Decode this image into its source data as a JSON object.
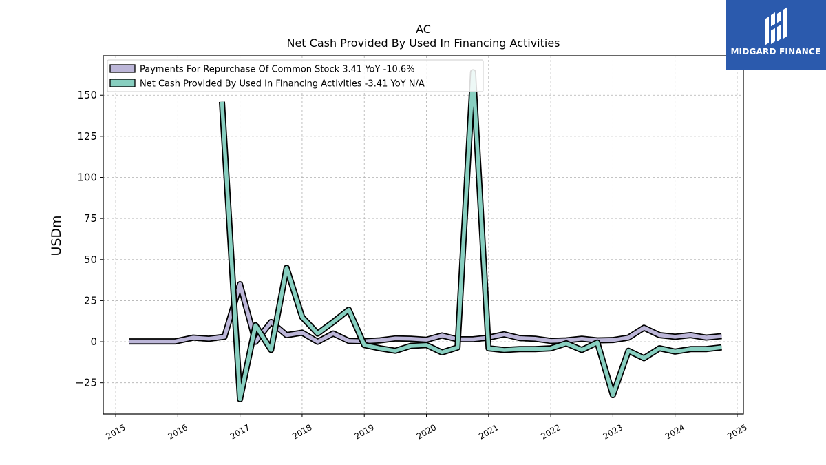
{
  "chart_data": {
    "type": "line",
    "title": "AC",
    "subtitle": "Net Cash Provided By Used In Financing Activities",
    "ylabel": "USDm",
    "xlim": [
      2014.8,
      2025.1
    ],
    "ylim": [
      -44,
      174
    ],
    "yticks": [
      -25,
      0,
      25,
      50,
      75,
      100,
      125,
      150
    ],
    "xticks": [
      2015,
      2016,
      2017,
      2018,
      2019,
      2020,
      2021,
      2022,
      2023,
      2024,
      2025
    ],
    "grid": true,
    "legend_position": "top-left",
    "series": [
      {
        "name": "Payments For Repurchase Of Common Stock",
        "legend_label": "Payments For Repurchase Of Common Stock  3.41 YoY -10.6%",
        "color": "#bcb6d8",
        "points": [
          [
            2015.21,
            0.2
          ],
          [
            2015.46,
            0.2
          ],
          [
            2015.71,
            0.2
          ],
          [
            2015.96,
            0.2
          ],
          [
            2016.25,
            2.5
          ],
          [
            2016.5,
            1.8
          ],
          [
            2016.75,
            3.0
          ],
          [
            2017.0,
            35.0
          ],
          [
            2017.25,
            0.0
          ],
          [
            2017.5,
            12.0
          ],
          [
            2017.75,
            4.0
          ],
          [
            2018.0,
            5.5
          ],
          [
            2018.25,
            0.0
          ],
          [
            2018.5,
            5.0
          ],
          [
            2018.75,
            0.5
          ],
          [
            2019.0,
            0.3
          ],
          [
            2019.25,
            0.8
          ],
          [
            2019.5,
            2.0
          ],
          [
            2019.75,
            1.8
          ],
          [
            2020.0,
            1.2
          ],
          [
            2020.25,
            3.8
          ],
          [
            2020.5,
            1.5
          ],
          [
            2020.75,
            1.5
          ],
          [
            2021.0,
            2.5
          ],
          [
            2021.25,
            4.5
          ],
          [
            2021.5,
            2.2
          ],
          [
            2021.75,
            1.8
          ],
          [
            2022.0,
            0.5
          ],
          [
            2022.25,
            0.8
          ],
          [
            2022.5,
            1.8
          ],
          [
            2022.75,
            0.8
          ],
          [
            2023.0,
            1.0
          ],
          [
            2023.25,
            2.5
          ],
          [
            2023.5,
            8.5
          ],
          [
            2023.75,
            4.0
          ],
          [
            2024.0,
            3.0
          ],
          [
            2024.25,
            4.0
          ],
          [
            2024.5,
            2.5
          ],
          [
            2024.75,
            3.4
          ]
        ]
      },
      {
        "name": "Net Cash Provided By Used In Financing Activities",
        "legend_label": "Net Cash Provided By Used In Financing Activities  -3.41 YoY N/A",
        "color": "#88cfc0",
        "points": [
          [
            2016.71,
            146.0
          ],
          [
            2017.0,
            -35.0
          ],
          [
            2017.25,
            10.0
          ],
          [
            2017.5,
            -5.0
          ],
          [
            2017.75,
            45.0
          ],
          [
            2018.0,
            15.0
          ],
          [
            2018.25,
            5.0
          ],
          [
            2018.5,
            12.0
          ],
          [
            2018.75,
            19.5
          ],
          [
            2019.0,
            -2.0
          ],
          [
            2019.25,
            -4.0
          ],
          [
            2019.5,
            -5.5
          ],
          [
            2019.75,
            -2.5
          ],
          [
            2020.0,
            -2.0
          ],
          [
            2020.25,
            -6.5
          ],
          [
            2020.5,
            -3.5
          ],
          [
            2020.75,
            164.0
          ],
          [
            2021.0,
            -4.0
          ],
          [
            2021.25,
            -5.0
          ],
          [
            2021.5,
            -4.5
          ],
          [
            2021.75,
            -4.5
          ],
          [
            2022.0,
            -4.0
          ],
          [
            2022.25,
            -1.0
          ],
          [
            2022.5,
            -5.0
          ],
          [
            2022.75,
            -0.5
          ],
          [
            2023.0,
            -32.5
          ],
          [
            2023.25,
            -5.5
          ],
          [
            2023.5,
            -10.0
          ],
          [
            2023.75,
            -4.0
          ],
          [
            2024.0,
            -6.0
          ],
          [
            2024.25,
            -4.5
          ],
          [
            2024.5,
            -4.5
          ],
          [
            2024.75,
            -3.4
          ]
        ]
      }
    ]
  },
  "logo": {
    "text": "MIDGARD FINANCE"
  }
}
